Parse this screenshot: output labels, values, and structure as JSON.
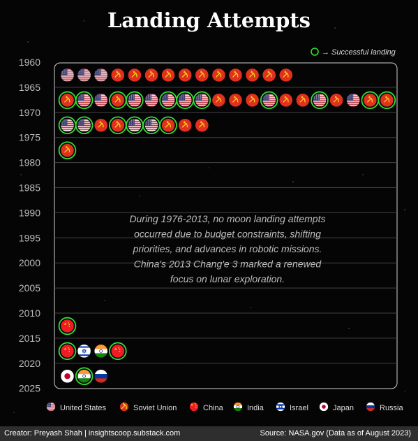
{
  "title": "Landing Attempts",
  "legend_success": "→ Successful landing",
  "annotation": [
    "During 1976-2013, no moon landing attempts",
    "occurred due to budget constraints, shifting",
    "priorities, and advances in robotic missions.",
    "China's 2013 Chang'e 3 marked a renewed",
    "focus on lunar exploration."
  ],
  "footer": {
    "creator": "Creator: Preyash Shah | insightscoop.substack.com",
    "source": "Source: NASA.gov (Data as of August 2023)"
  },
  "colors": {
    "success_ring": "#33dd33",
    "frame": "#cfcfcf",
    "gridline": "#444444",
    "usa": "#b22234",
    "ussr": "#e03020",
    "china": "#ee1c25",
    "india": "#ff9933",
    "israel": "#0038b8",
    "japan": "#bc002d",
    "russia": "#0039a6"
  },
  "legend": [
    {
      "code": "usa",
      "label": "United States"
    },
    {
      "code": "ussr",
      "label": "Soviet Union"
    },
    {
      "code": "china",
      "label": "China"
    },
    {
      "code": "india",
      "label": "India"
    },
    {
      "code": "israel",
      "label": "Israel"
    },
    {
      "code": "japan",
      "label": "Japan"
    },
    {
      "code": "russia",
      "label": "Russia"
    }
  ],
  "chart_data": {
    "type": "scatter",
    "ylim": [
      1960,
      2025
    ],
    "ytick_labels": [
      "1960",
      "1965",
      "1970",
      "1975",
      "1980",
      "1985",
      "1990",
      "1995",
      "2000",
      "2005",
      "2010",
      "2015",
      "2020",
      "2025"
    ],
    "rows": [
      {
        "period": "1960-1965",
        "attempts": [
          {
            "country": "usa",
            "success": false
          },
          {
            "country": "usa",
            "success": false
          },
          {
            "country": "usa",
            "success": false
          },
          {
            "country": "ussr",
            "success": false
          },
          {
            "country": "ussr",
            "success": false
          },
          {
            "country": "ussr",
            "success": false
          },
          {
            "country": "ussr",
            "success": false
          },
          {
            "country": "ussr",
            "success": false
          },
          {
            "country": "ussr",
            "success": false
          },
          {
            "country": "ussr",
            "success": false
          },
          {
            "country": "ussr",
            "success": false
          },
          {
            "country": "ussr",
            "success": false
          },
          {
            "country": "ussr",
            "success": false
          },
          {
            "country": "ussr",
            "success": false
          }
        ]
      },
      {
        "period": "1965-1970",
        "attempts": [
          {
            "country": "ussr",
            "success": true
          },
          {
            "country": "usa",
            "success": true
          },
          {
            "country": "usa",
            "success": false
          },
          {
            "country": "ussr",
            "success": true
          },
          {
            "country": "usa",
            "success": true
          },
          {
            "country": "usa",
            "success": false
          },
          {
            "country": "usa",
            "success": true
          },
          {
            "country": "usa",
            "success": true
          },
          {
            "country": "usa",
            "success": true
          },
          {
            "country": "ussr",
            "success": false
          },
          {
            "country": "ussr",
            "success": false
          },
          {
            "country": "ussr",
            "success": false
          },
          {
            "country": "usa",
            "success": true
          },
          {
            "country": "ussr",
            "success": false
          },
          {
            "country": "ussr",
            "success": false
          },
          {
            "country": "usa",
            "success": true
          },
          {
            "country": "ussr",
            "success": false
          },
          {
            "country": "usa",
            "success": false
          },
          {
            "country": "ussr",
            "success": true
          },
          {
            "country": "ussr",
            "success": true
          }
        ]
      },
      {
        "period": "1970-1975",
        "attempts": [
          {
            "country": "usa",
            "success": true
          },
          {
            "country": "usa",
            "success": true
          },
          {
            "country": "ussr",
            "success": false
          },
          {
            "country": "ussr",
            "success": true
          },
          {
            "country": "usa",
            "success": true
          },
          {
            "country": "usa",
            "success": true
          },
          {
            "country": "ussr",
            "success": true
          },
          {
            "country": "ussr",
            "success": false
          },
          {
            "country": "ussr",
            "success": false
          }
        ]
      },
      {
        "period": "1975-1980",
        "attempts": [
          {
            "country": "ussr",
            "success": true
          }
        ]
      },
      {
        "period": "2010-2015",
        "attempts": [
          {
            "country": "china",
            "success": true
          }
        ]
      },
      {
        "period": "2015-2020",
        "attempts": [
          {
            "country": "china",
            "success": true
          },
          {
            "country": "israel",
            "success": false
          },
          {
            "country": "india",
            "success": false
          },
          {
            "country": "china",
            "success": true
          }
        ]
      },
      {
        "period": "2020-2025",
        "attempts": [
          {
            "country": "japan",
            "success": false
          },
          {
            "country": "india",
            "success": true
          },
          {
            "country": "russia",
            "success": false
          }
        ]
      }
    ]
  }
}
